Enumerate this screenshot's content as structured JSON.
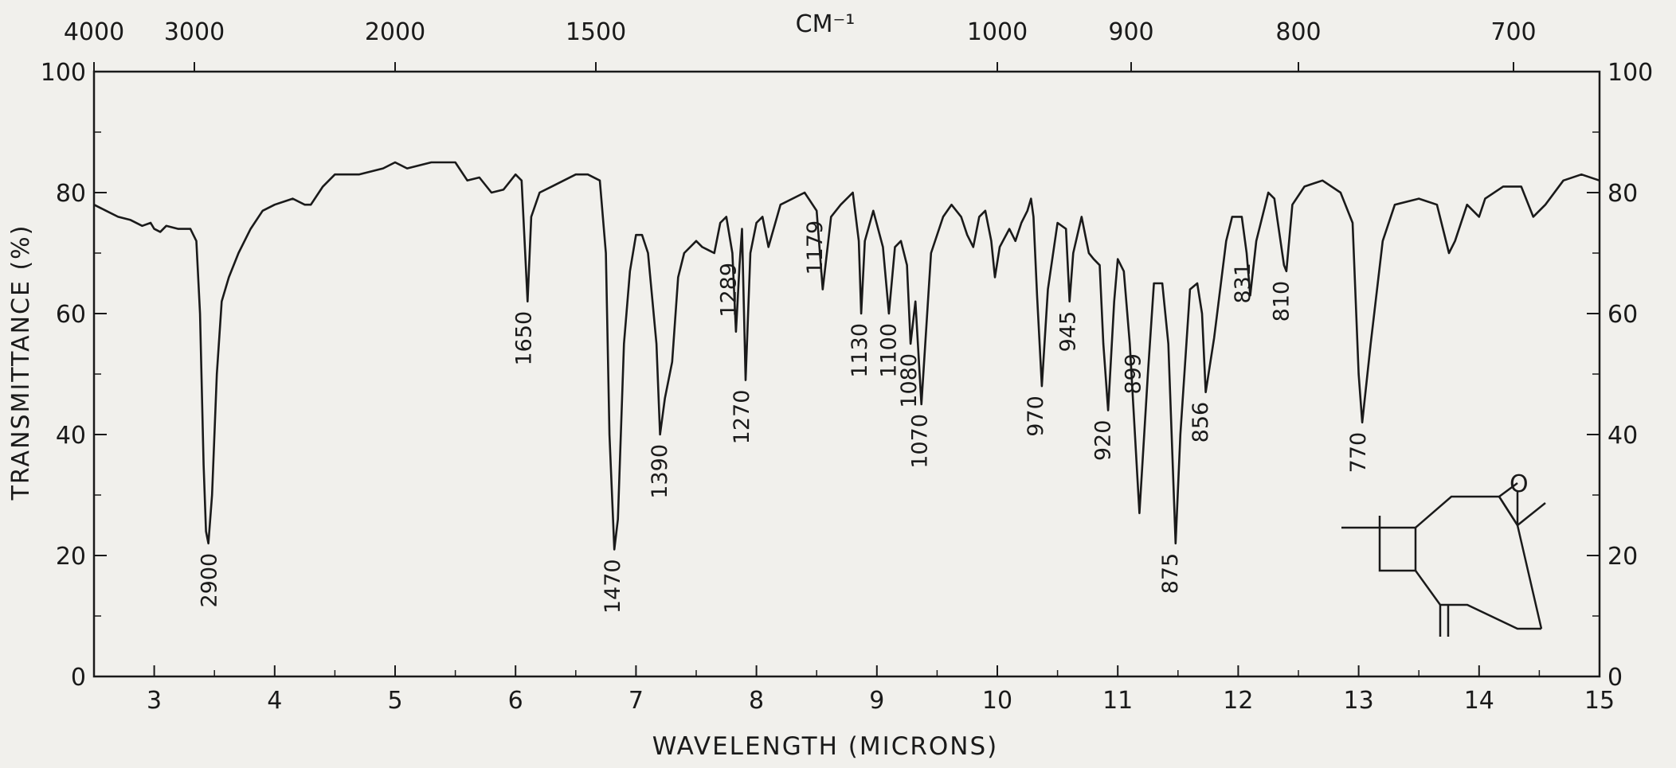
{
  "chart_data": {
    "type": "line",
    "title": "",
    "xlabel": "WAVELENGTH (MICRONS)",
    "ylabel": "TRANSMITTANCE (%)",
    "top_axis_label": "CM⁻¹",
    "xlim": [
      2.5,
      15
    ],
    "ylim": [
      0,
      100
    ],
    "x_ticks": [
      3,
      4,
      5,
      6,
      7,
      8,
      9,
      10,
      11,
      12,
      13,
      14,
      15
    ],
    "x_tick_labels": [
      "3",
      "4",
      "5",
      "6",
      "7",
      "8",
      "9",
      "10",
      "11",
      "12",
      "13",
      "14",
      "15"
    ],
    "y_ticks": [
      0,
      20,
      40,
      60,
      80,
      100
    ],
    "y_tick_labels_left": [
      "0",
      "20",
      "40",
      "60",
      "80",
      "100"
    ],
    "y_tick_labels_right": [
      "0",
      "20",
      "40",
      "60",
      "80",
      "100"
    ],
    "top_ticks": [
      {
        "label": "4000",
        "x": 2.5
      },
      {
        "label": "3000",
        "x": 3.3333
      },
      {
        "label": "2000",
        "x": 5.0
      },
      {
        "label": "1500",
        "x": 6.6667
      },
      {
        "label": "1000",
        "x": 10.0
      },
      {
        "label": "900",
        "x": 11.1111
      },
      {
        "label": "800",
        "x": 12.5
      },
      {
        "label": "700",
        "x": 14.2857
      }
    ],
    "series": [
      {
        "points": [
          [
            2.5,
            78
          ],
          [
            2.6,
            77
          ],
          [
            2.7,
            76
          ],
          [
            2.8,
            75.5
          ],
          [
            2.9,
            74.5
          ],
          [
            2.97,
            75
          ],
          [
            3.0,
            74
          ],
          [
            3.05,
            73.5
          ],
          [
            3.1,
            74.5
          ],
          [
            3.2,
            74
          ],
          [
            3.3,
            74
          ],
          [
            3.35,
            72
          ],
          [
            3.38,
            60
          ],
          [
            3.41,
            35
          ],
          [
            3.43,
            24
          ],
          [
            3.45,
            22
          ],
          [
            3.48,
            30
          ],
          [
            3.52,
            50
          ],
          [
            3.56,
            62
          ],
          [
            3.62,
            66
          ],
          [
            3.7,
            70
          ],
          [
            3.8,
            74
          ],
          [
            3.9,
            77
          ],
          [
            4.0,
            78
          ],
          [
            4.15,
            79
          ],
          [
            4.25,
            78
          ],
          [
            4.3,
            78
          ],
          [
            4.4,
            81
          ],
          [
            4.5,
            83
          ],
          [
            4.7,
            83
          ],
          [
            4.9,
            84
          ],
          [
            5.0,
            85
          ],
          [
            5.1,
            84
          ],
          [
            5.3,
            85
          ],
          [
            5.5,
            85
          ],
          [
            5.6,
            82
          ],
          [
            5.7,
            82.5
          ],
          [
            5.8,
            80
          ],
          [
            5.9,
            80.5
          ],
          [
            6.0,
            83
          ],
          [
            6.05,
            82
          ],
          [
            6.08,
            70
          ],
          [
            6.1,
            62
          ],
          [
            6.13,
            76
          ],
          [
            6.2,
            80
          ],
          [
            6.3,
            81
          ],
          [
            6.4,
            82
          ],
          [
            6.5,
            83
          ],
          [
            6.6,
            83
          ],
          [
            6.7,
            82
          ],
          [
            6.75,
            70
          ],
          [
            6.78,
            40
          ],
          [
            6.82,
            21
          ],
          [
            6.85,
            26
          ],
          [
            6.9,
            55
          ],
          [
            6.95,
            67
          ],
          [
            7.0,
            73
          ],
          [
            7.05,
            73
          ],
          [
            7.1,
            70
          ],
          [
            7.17,
            55
          ],
          [
            7.2,
            40
          ],
          [
            7.24,
            46
          ],
          [
            7.3,
            52
          ],
          [
            7.35,
            66
          ],
          [
            7.4,
            70
          ],
          [
            7.5,
            72
          ],
          [
            7.55,
            71
          ],
          [
            7.65,
            70
          ],
          [
            7.7,
            75
          ],
          [
            7.75,
            76
          ],
          [
            7.8,
            70
          ],
          [
            7.83,
            57
          ],
          [
            7.86,
            68
          ],
          [
            7.88,
            74
          ],
          [
            7.91,
            49
          ],
          [
            7.95,
            70
          ],
          [
            8.0,
            75
          ],
          [
            8.05,
            76
          ],
          [
            8.1,
            71
          ],
          [
            8.2,
            78
          ],
          [
            8.4,
            80
          ],
          [
            8.5,
            77
          ],
          [
            8.55,
            64
          ],
          [
            8.62,
            76
          ],
          [
            8.7,
            78
          ],
          [
            8.8,
            80
          ],
          [
            8.85,
            72
          ],
          [
            8.87,
            60
          ],
          [
            8.9,
            72
          ],
          [
            8.97,
            77
          ],
          [
            9.05,
            71
          ],
          [
            9.1,
            60
          ],
          [
            9.15,
            71
          ],
          [
            9.2,
            72
          ],
          [
            9.25,
            68
          ],
          [
            9.28,
            55
          ],
          [
            9.32,
            62
          ],
          [
            9.37,
            45
          ],
          [
            9.45,
            70
          ],
          [
            9.55,
            76
          ],
          [
            9.62,
            78
          ],
          [
            9.7,
            76
          ],
          [
            9.75,
            73
          ],
          [
            9.8,
            71
          ],
          [
            9.85,
            76
          ],
          [
            9.9,
            77
          ],
          [
            9.95,
            72
          ],
          [
            9.98,
            66
          ],
          [
            10.02,
            71
          ],
          [
            10.1,
            74
          ],
          [
            10.15,
            72
          ],
          [
            10.2,
            75
          ],
          [
            10.25,
            77
          ],
          [
            10.28,
            79
          ],
          [
            10.3,
            76
          ],
          [
            10.33,
            63
          ],
          [
            10.37,
            48
          ],
          [
            10.42,
            64
          ],
          [
            10.5,
            75
          ],
          [
            10.57,
            74
          ],
          [
            10.6,
            62
          ],
          [
            10.63,
            70
          ],
          [
            10.7,
            76
          ],
          [
            10.76,
            70
          ],
          [
            10.8,
            69
          ],
          [
            10.85,
            68
          ],
          [
            10.88,
            55
          ],
          [
            10.92,
            44
          ],
          [
            10.97,
            62
          ],
          [
            11.0,
            69
          ],
          [
            11.05,
            67
          ],
          [
            11.1,
            55
          ],
          [
            11.18,
            27
          ],
          [
            11.25,
            50
          ],
          [
            11.3,
            65
          ],
          [
            11.37,
            65
          ],
          [
            11.42,
            55
          ],
          [
            11.48,
            22
          ],
          [
            11.52,
            40
          ],
          [
            11.6,
            64
          ],
          [
            11.66,
            65
          ],
          [
            11.7,
            60
          ],
          [
            11.73,
            47
          ],
          [
            11.8,
            56
          ],
          [
            11.9,
            72
          ],
          [
            11.95,
            76
          ],
          [
            12.03,
            76
          ],
          [
            12.07,
            70
          ],
          [
            12.1,
            63
          ],
          [
            12.15,
            72
          ],
          [
            12.25,
            80
          ],
          [
            12.3,
            79
          ],
          [
            12.38,
            68
          ],
          [
            12.4,
            67
          ],
          [
            12.45,
            78
          ],
          [
            12.55,
            81
          ],
          [
            12.7,
            82
          ],
          [
            12.85,
            80
          ],
          [
            12.95,
            75
          ],
          [
            13.0,
            50
          ],
          [
            13.03,
            42
          ],
          [
            13.1,
            55
          ],
          [
            13.2,
            72
          ],
          [
            13.3,
            78
          ],
          [
            13.5,
            79
          ],
          [
            13.65,
            78
          ],
          [
            13.75,
            70
          ],
          [
            13.8,
            72
          ],
          [
            13.9,
            78
          ],
          [
            14.0,
            76
          ],
          [
            14.05,
            79
          ],
          [
            14.2,
            81
          ],
          [
            14.35,
            81
          ],
          [
            14.45,
            76
          ],
          [
            14.55,
            78
          ],
          [
            14.7,
            82
          ],
          [
            14.85,
            83
          ],
          [
            15.0,
            82
          ]
        ]
      }
    ],
    "annotations": [
      {
        "text": "2900",
        "x": 3.45
      },
      {
        "text": "1650",
        "x": 6.06
      },
      {
        "text": "1470",
        "x": 6.8
      },
      {
        "text": "1390",
        "x": 7.19
      },
      {
        "text": "1289",
        "x": 7.76
      },
      {
        "text": "1270",
        "x": 7.87
      },
      {
        "text": "1179",
        "x": 8.48
      },
      {
        "text": "1130",
        "x": 8.85
      },
      {
        "text": "1100",
        "x": 9.09
      },
      {
        "text": "1080",
        "x": 9.26
      },
      {
        "text": "1070",
        "x": 9.35
      },
      {
        "text": "970",
        "x": 10.31
      },
      {
        "text": "945",
        "x": 10.58
      },
      {
        "text": "920",
        "x": 10.87
      },
      {
        "text": "899",
        "x": 11.12
      },
      {
        "text": "875",
        "x": 11.43
      },
      {
        "text": "856",
        "x": 11.68
      },
      {
        "text": "831",
        "x": 12.03
      },
      {
        "text": "810",
        "x": 12.35
      },
      {
        "text": "770",
        "x": 12.99
      }
    ],
    "grid": false,
    "legend": "none"
  },
  "colors": {
    "background": "#f1f0ec",
    "ink": "#1a1a1a"
  }
}
